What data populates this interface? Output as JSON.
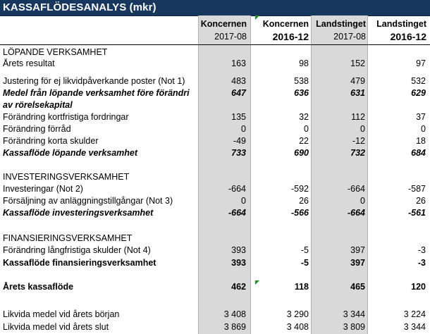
{
  "title": "KASSAFLÖDESANALYS (mkr)",
  "columns": [
    {
      "name": "Koncernen",
      "period": "2017-08"
    },
    {
      "name": "Koncernen",
      "period": "2016-12"
    },
    {
      "name": "Landstinget",
      "period": "2017-08"
    },
    {
      "name": "Landstinget",
      "period": "2016-12"
    }
  ],
  "rows": [
    {
      "label": "LÖPANDE VERKSAMHET",
      "style": "section",
      "values": [
        "",
        "",
        "",
        ""
      ]
    },
    {
      "label": "Årets resultat",
      "style": "normal",
      "values": [
        "163",
        "98",
        "152",
        "97"
      ]
    },
    {
      "label": "",
      "style": "blank",
      "values": [
        "",
        "",
        "",
        ""
      ]
    },
    {
      "label": "Justering för ej likvidpåverkande poster (Not 1)",
      "style": "normal",
      "values": [
        "483",
        "538",
        "479",
        "532"
      ]
    },
    {
      "label": "Medel från löpande verksamhet före förändri",
      "style": "bolditalic",
      "values": [
        "647",
        "636",
        "631",
        "629"
      ]
    },
    {
      "label": "av rörelsekapital",
      "style": "bolditalic",
      "values": [
        "",
        "",
        "",
        ""
      ]
    },
    {
      "label": "Förändring kortfristiga fordringar",
      "style": "normal",
      "values": [
        "135",
        "32",
        "112",
        "37"
      ]
    },
    {
      "label": "Förändring förråd",
      "style": "normal",
      "values": [
        "0",
        "0",
        "0",
        "0"
      ]
    },
    {
      "label": "Förändring korta skulder",
      "style": "normal",
      "values": [
        "-49",
        "22",
        "-12",
        "18"
      ]
    },
    {
      "label": "Kassaflöde löpande verksamhet",
      "style": "bolditalic",
      "values": [
        "733",
        "690",
        "732",
        "684"
      ]
    },
    {
      "label": "",
      "style": "blank",
      "values": [
        "",
        "",
        "",
        ""
      ]
    },
    {
      "label": "INVESTERINGSVERKSAMHET",
      "style": "section",
      "values": [
        "",
        "",
        "",
        ""
      ]
    },
    {
      "label": "Investeringar (Not 2)",
      "style": "normal",
      "values": [
        "-664",
        "-592",
        "-664",
        "-587"
      ]
    },
    {
      "label": "Försäljning av anläggningstillgångar (Not 3)",
      "style": "normal",
      "values": [
        "0",
        "26",
        "0",
        "26"
      ]
    },
    {
      "label": "Kassaflöde  investeringsverksamhet",
      "style": "bolditalic",
      "values": [
        "-664",
        "-566",
        "-664",
        "-561"
      ]
    },
    {
      "label": "",
      "style": "blank",
      "values": [
        "",
        "",
        "",
        ""
      ]
    },
    {
      "label": "FINANSIERINGSVERKSAMHET",
      "style": "section",
      "values": [
        "",
        "",
        "",
        ""
      ]
    },
    {
      "label": "Förändring långfristiga skulder (Not 4)",
      "style": "normal",
      "values": [
        "393",
        "-5",
        "397",
        "-3"
      ]
    },
    {
      "label": "Kassaflöde  finansieringsverksamhet",
      "style": "bold",
      "values": [
        "393",
        "-5",
        "397",
        "-3"
      ]
    },
    {
      "label": "",
      "style": "blank",
      "values": [
        "",
        "",
        "",
        ""
      ]
    },
    {
      "label": "Årets kassaflöde",
      "style": "bold",
      "values": [
        "462",
        "118",
        "465",
        "120"
      ]
    },
    {
      "label": "",
      "style": "blank",
      "values": [
        "",
        "",
        "",
        ""
      ]
    },
    {
      "label": "Likvida medel vid årets början",
      "style": "normal",
      "values": [
        "3 408",
        "3 290",
        "3 344",
        "3 224"
      ]
    },
    {
      "label": "Likvida medel vid årets slut",
      "style": "normal",
      "values": [
        "3 869",
        "3 408",
        "3 809",
        "3 344"
      ]
    }
  ]
}
